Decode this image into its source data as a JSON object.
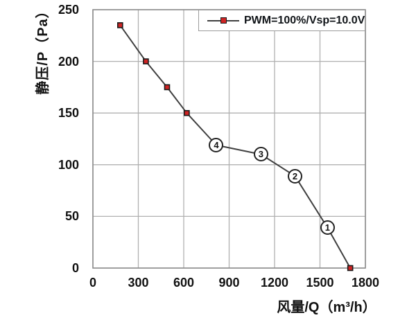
{
  "chart_data": {
    "type": "line",
    "title": "",
    "xlabel": "风量/Q（m³/h）",
    "ylabel": "静压/P（Pa）",
    "xlim": [
      0,
      1800
    ],
    "ylim": [
      0,
      250
    ],
    "x_ticks": [
      0,
      300,
      600,
      900,
      1200,
      1500,
      1800
    ],
    "y_ticks": [
      0,
      50,
      100,
      150,
      200,
      250
    ],
    "grid": true,
    "legend_position": "top-right-inside",
    "series": [
      {
        "name": "PWM=100%/Vsp=10.0V",
        "line_color": "#3f3f3f",
        "marker": "square",
        "marker_fill": "#cf2424",
        "marker_edge": "#1a1a1a",
        "points": [
          [
            180,
            235
          ],
          [
            350,
            200
          ],
          [
            490,
            175
          ],
          [
            620,
            150
          ],
          [
            815,
            119
          ],
          [
            1110,
            110
          ],
          [
            1335,
            89
          ],
          [
            1550,
            39
          ],
          [
            1700,
            0
          ]
        ],
        "marker_points": [
          [
            180,
            235
          ],
          [
            350,
            200
          ],
          [
            490,
            175
          ],
          [
            620,
            150
          ],
          [
            1700,
            0
          ]
        ]
      }
    ],
    "annotations": [
      {
        "digit": "4",
        "x": 815,
        "y": 119
      },
      {
        "digit": "3",
        "x": 1110,
        "y": 110
      },
      {
        "digit": "2",
        "x": 1335,
        "y": 89
      },
      {
        "digit": "1",
        "x": 1550,
        "y": 39
      }
    ],
    "colors": {
      "grid": "#b0b0b0",
      "plot_border": "#8c8c8c",
      "text": "#111111",
      "background": "#ffffff"
    }
  }
}
